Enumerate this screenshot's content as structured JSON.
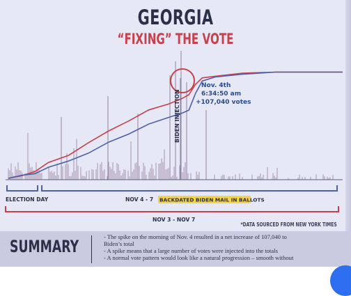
{
  "title": "GEORGIA",
  "subtitle": "“FIXING” THE VOTE",
  "chart_data": {
    "type": "line",
    "title": "GEORGIA",
    "subtitle": "“FIXING” THE VOTE",
    "x": [
      0,
      0.04,
      0.08,
      0.12,
      0.18,
      0.24,
      0.3,
      0.36,
      0.42,
      0.48,
      0.52,
      0.54,
      0.56,
      0.58,
      0.62,
      0.7,
      0.8,
      0.9,
      1.0
    ],
    "series": [
      {
        "name": "",
        "color": "#c8404b",
        "values": [
          0.0,
          0.02,
          0.07,
          0.14,
          0.22,
          0.33,
          0.44,
          0.54,
          0.63,
          0.7,
          0.74,
          0.78,
          0.88,
          0.93,
          0.96,
          0.98,
          0.99,
          0.99,
          0.99
        ]
      },
      {
        "name": "",
        "color": "#4d61a8",
        "values": [
          0.0,
          0.02,
          0.05,
          0.1,
          0.16,
          0.24,
          0.33,
          0.42,
          0.5,
          0.57,
          0.61,
          0.63,
          0.8,
          0.9,
          0.95,
          0.97,
          0.99,
          0.99,
          0.99
        ]
      }
    ],
    "annotation": {
      "lines": [
        "Nov. 4th",
        "6:34:50 am",
        "+107,040 votes"
      ],
      "vertical_label": "BIDEN INJECTION"
    },
    "legend": "none",
    "grid": false
  },
  "timeline": {
    "election_day": "ELECTION DAY",
    "nov_4_7": "NOV 4 - 7",
    "backdated": "BACKDATED BIDEN MAIL IN BALLOTS",
    "nov_3_7": "NOV 3 - NOV 7"
  },
  "source": "*DATA SOURCED FROM NEW YORK TIMES",
  "summary": {
    "label": "SUMMARY",
    "lines": [
      "- The spike on the morning of Nov. 4 resulted in a net increase of 107,040 to",
      "Biden’s total",
      "- A spike means that a large number of votes were injected into the totals",
      "- A normal vote pattern would look like a natural progression – smooth without"
    ]
  },
  "colors": {
    "background": "#e7e8f5",
    "navy": "#2b3048",
    "red": "#c8404b",
    "blue": "#4d61a8",
    "bars": "#9a7fa4",
    "highlight": "#f2d34a"
  }
}
